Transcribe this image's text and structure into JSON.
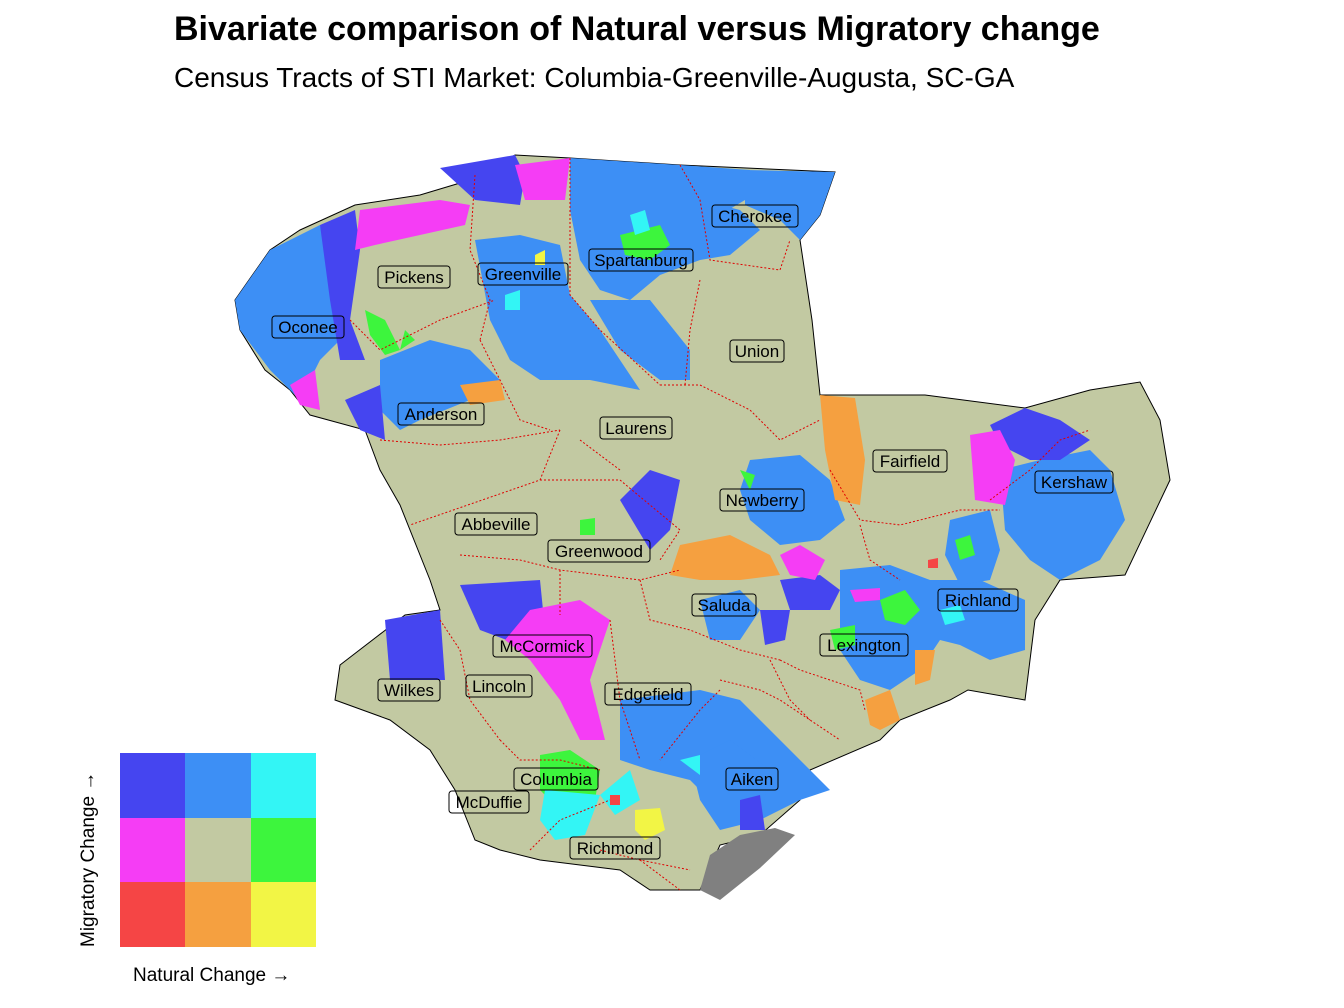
{
  "title": "Bivariate comparison of Natural versus Migratory change",
  "subtitle": "Census Tracts of STI Market: Columbia-Greenville-Augusta, SC-GA",
  "counties": [
    {
      "name": "Cherokee"
    },
    {
      "name": "Spartanburg"
    },
    {
      "name": "Greenville"
    },
    {
      "name": "Pickens"
    },
    {
      "name": "Oconee"
    },
    {
      "name": "Union"
    },
    {
      "name": "Anderson"
    },
    {
      "name": "Laurens"
    },
    {
      "name": "Fairfield"
    },
    {
      "name": "Kershaw"
    },
    {
      "name": "Newberry"
    },
    {
      "name": "Abbeville"
    },
    {
      "name": "Greenwood"
    },
    {
      "name": "Richland"
    },
    {
      "name": "Saluda"
    },
    {
      "name": "McCormick"
    },
    {
      "name": "Lexington"
    },
    {
      "name": "Wilkes"
    },
    {
      "name": "Lincoln"
    },
    {
      "name": "Edgefield"
    },
    {
      "name": "Columbia"
    },
    {
      "name": "Aiken"
    },
    {
      "name": "McDuffie"
    },
    {
      "name": "Richmond"
    }
  ],
  "colors": {
    "base": "#c2c9a2",
    "high_mig_low_nat": "#4545f0",
    "high_mig_mid_nat": "#3d8ff5",
    "high_mig_high_nat": "#33f5f5",
    "mid_mig_low_nat": "#f53df5",
    "mid_mig_mid_nat": "#c2c9a2",
    "mid_mig_high_nat": "#3df53d",
    "low_mig_low_nat": "#f54545",
    "low_mig_mid_nat": "#f5a040",
    "low_mig_high_nat": "#f2f545",
    "missing": "#808080",
    "border": "#e00000"
  },
  "legend": {
    "x_label": "Natural Change →",
    "y_label": "Migratory Change →",
    "grid": [
      [
        "#4545f0",
        "#3d8ff5",
        "#33f5f5"
      ],
      [
        "#f53df5",
        "#c2c9a2",
        "#3df53d"
      ],
      [
        "#f54545",
        "#f5a040",
        "#f2f545"
      ]
    ]
  }
}
